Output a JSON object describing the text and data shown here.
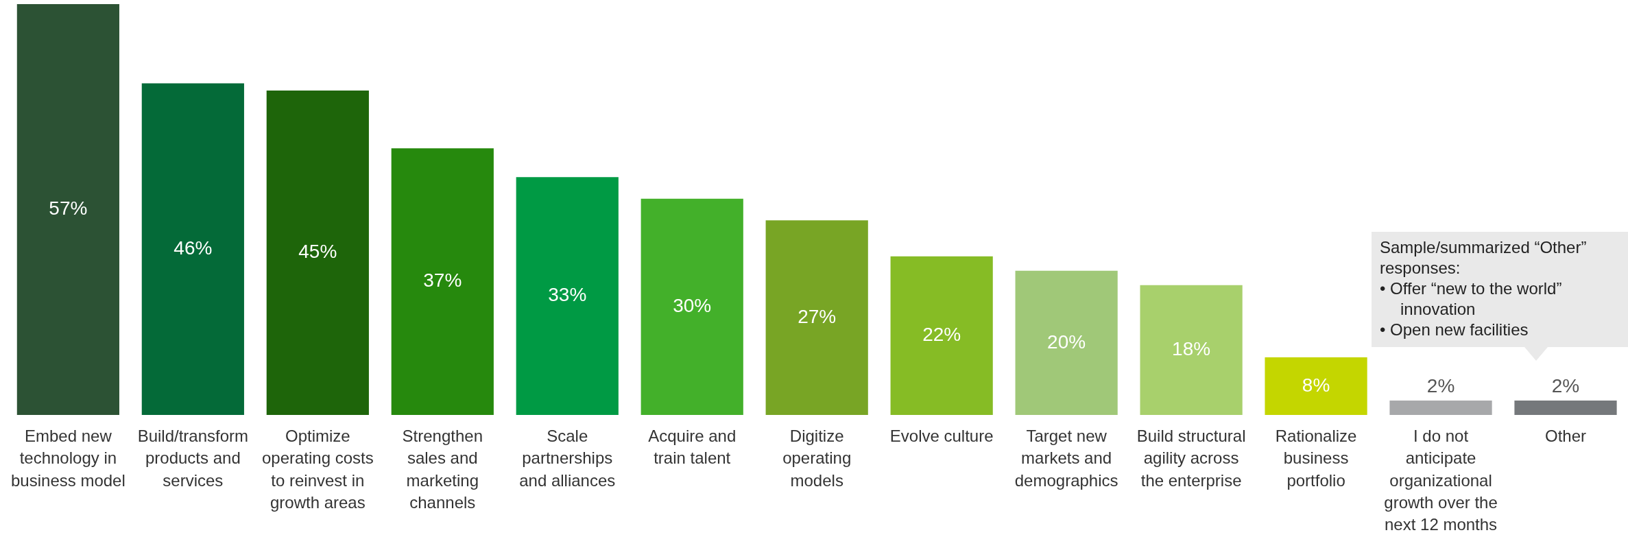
{
  "chart_data": {
    "type": "bar",
    "categories": [
      "Embed new technology in business model",
      "Build/transform products and services",
      "Optimize operating costs to reinvest in growth areas",
      "Strengthen sales and marketing channels",
      "Scale partnerships and alliances",
      "Acquire and train talent",
      "Digitize operating models",
      "Evolve culture",
      "Target new markets and demographics",
      "Build structural agility across the enterprise",
      "Rationalize business portfolio",
      "I do not anticipate organizational growth over the next 12 months",
      "Other"
    ],
    "values": [
      57,
      46,
      45,
      37,
      33,
      30,
      27,
      22,
      20,
      18,
      8,
      2,
      2
    ],
    "colors": [
      "#2c5234",
      "#046a38",
      "#1e650a",
      "#26890d",
      "#009a44",
      "#43b02a",
      "#78a525",
      "#86bc25",
      "#a0c878",
      "#a8d06c",
      "#c4d600",
      "#a7a8aa",
      "#75787b"
    ],
    "value_labels": [
      "57%",
      "46%",
      "45%",
      "37%",
      "33%",
      "30%",
      "27%",
      "22%",
      "20%",
      "18%",
      "8%",
      "2%",
      "2%"
    ],
    "annotations": [
      "Sample/summarized “Other” responses:",
      "• Offer “new to the world” innovation",
      "• Open new facilities"
    ],
    "grid": false,
    "legend": false
  }
}
